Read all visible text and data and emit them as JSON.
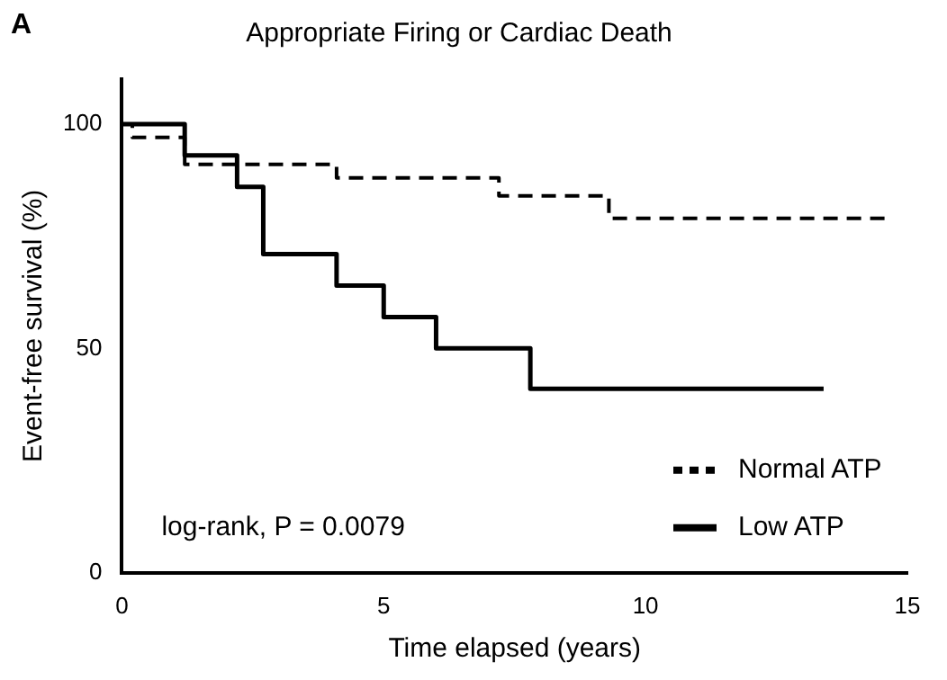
{
  "chart_data": {
    "type": "step",
    "title": "Appropriate Firing or Cardiac Death",
    "xlabel": "Time elapsed (years)",
    "ylabel": "Event-free survival (%)",
    "annotations": [
      "A",
      "log-rank, P = 0.0079"
    ],
    "xlim": [
      0,
      15
    ],
    "xticks": [
      0,
      5,
      10,
      15
    ],
    "ylim": [
      0,
      110
    ],
    "yticks": [
      0,
      50,
      100
    ],
    "grid": false,
    "legend": "bottom right",
    "marker": "none",
    "series": [
      {
        "name": "Normal ATP",
        "color": "#000000",
        "line_style": "dashed",
        "x": [
          0,
          0.2,
          1.2,
          4.1,
          7.2,
          9.3,
          14.6
        ],
        "values": [
          100,
          97,
          91,
          88,
          84,
          79,
          79
        ]
      },
      {
        "name": "Low ATP",
        "color": "#000000",
        "line_style": "solid",
        "x": [
          0,
          1.2,
          2.2,
          2.7,
          4.1,
          5.0,
          6.0,
          7.8,
          13.4
        ],
        "values": [
          100,
          93,
          86,
          71,
          64,
          57,
          50,
          41,
          41
        ]
      }
    ]
  }
}
